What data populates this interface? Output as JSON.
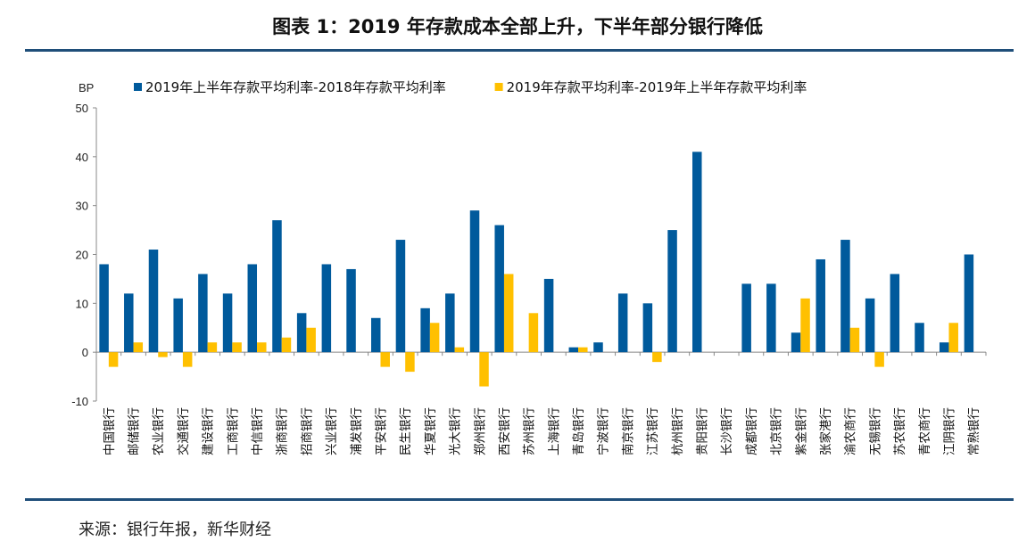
{
  "title": "图表 1：2019 年存款成本全部上升，下半年部分银行降低",
  "source": "来源：银行年报，新华财经",
  "chart_data": {
    "type": "bar",
    "ylabel": "BP",
    "ylim": [
      -10,
      50
    ],
    "yticks": [
      -10,
      0,
      10,
      20,
      30,
      40,
      50
    ],
    "grid": false,
    "legend": "top",
    "categories": [
      "中国银行",
      "邮储银行",
      "农业银行",
      "交通银行",
      "建设银行",
      "工商银行",
      "中信银行",
      "浙商银行",
      "招商银行",
      "兴业银行",
      "浦发银行",
      "平安银行",
      "民生银行",
      "华夏银行",
      "光大银行",
      "郑州银行",
      "西安银行",
      "苏州银行",
      "上海银行",
      "青岛银行",
      "宁波银行",
      "南京银行",
      "江苏银行",
      "杭州银行",
      "贵阳银行",
      "长沙银行",
      "成都银行",
      "北京银行",
      "紫金银行",
      "张家港行",
      "渝农商行",
      "无锡银行",
      "苏农银行",
      "青农商行",
      "江阴银行",
      "常熟银行"
    ],
    "series": [
      {
        "name": "2019年上半年存款平均利率-2018年存款平均利率",
        "color": "#005a9c",
        "values": [
          18,
          12,
          21,
          11,
          16,
          12,
          18,
          27,
          8,
          18,
          17,
          7,
          23,
          9,
          12,
          29,
          26,
          0,
          15,
          1,
          2,
          12,
          10,
          25,
          41,
          0,
          14,
          14,
          4,
          19,
          23,
          11,
          16,
          6,
          2,
          20
        ]
      },
      {
        "name": "2019年存款平均利率-2019年上半年存款平均利率",
        "color": "#ffc000",
        "values": [
          -3,
          2,
          -1,
          -3,
          2,
          2,
          2,
          3,
          5,
          0,
          0,
          -3,
          -4,
          6,
          1,
          -7,
          16,
          8,
          0,
          1,
          0,
          0,
          -2,
          0,
          0,
          0,
          0,
          0,
          11,
          0,
          5,
          -3,
          0,
          0,
          6,
          0
        ]
      }
    ]
  }
}
